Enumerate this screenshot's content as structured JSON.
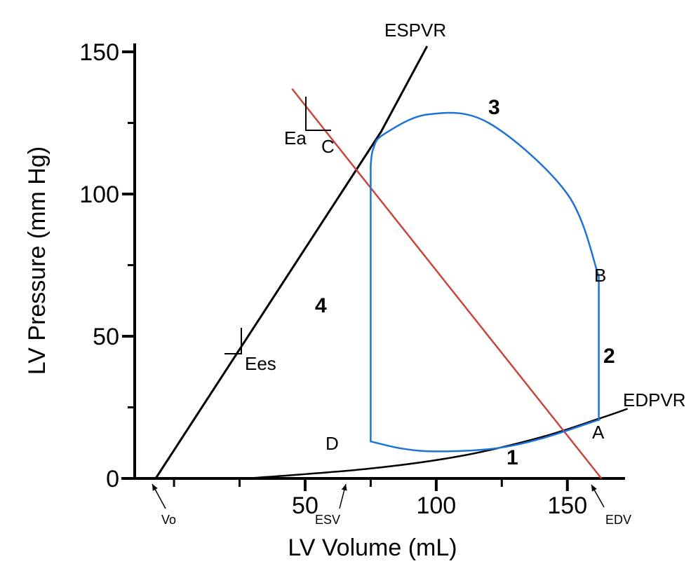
{
  "axes": {
    "xlabel": "LV Volume (mL)",
    "ylabel": "LV Pressure (mm Hg)",
    "xlim": [
      -15,
      172
    ],
    "ylim": [
      0,
      150
    ],
    "x_ticks": [
      {
        "value": 50,
        "label": "50"
      },
      {
        "value": 100,
        "label": "100"
      },
      {
        "value": 150,
        "label": "150"
      }
    ],
    "x_minor_ticks": [
      0,
      25,
      75,
      125
    ],
    "y_ticks": [
      {
        "value": 0,
        "label": "0"
      },
      {
        "value": 50,
        "label": "50"
      },
      {
        "value": 100,
        "label": "100"
      },
      {
        "value": 150,
        "label": "150"
      }
    ],
    "y_minor_ticks": [
      25,
      75,
      125
    ]
  },
  "colors": {
    "axis": "#000000",
    "espvr": "#000000",
    "edpvr": "#000000",
    "loop": "#1e73d6",
    "ea_line": "#c8453e"
  },
  "curves": {
    "espvr": {
      "label": "ESPVR",
      "points": [
        [
          -7,
          0
        ],
        [
          79,
          122
        ],
        [
          96.5,
          152
        ]
      ]
    },
    "edpvr": {
      "label": "EDPVR",
      "points": [
        [
          28,
          0
        ],
        [
          75,
          3.5
        ],
        [
          110,
          8
        ],
        [
          140,
          14.5
        ],
        [
          162,
          21
        ],
        [
          173,
          24.5
        ]
      ]
    },
    "ea": {
      "label": "Ea",
      "points": [
        [
          45,
          137
        ],
        [
          163,
          0
        ]
      ]
    }
  },
  "loop": {
    "points": [
      [
        162,
        20.5
      ],
      [
        162,
        71
      ],
      [
        150,
        100
      ],
      [
        120,
        125
      ],
      [
        97,
        128
      ],
      [
        80,
        121
      ],
      [
        76,
        116
      ],
      [
        75,
        110
      ],
      [
        75,
        13
      ],
      [
        87,
        10.5
      ],
      [
        100,
        9.5
      ],
      [
        122,
        10.5
      ],
      [
        140,
        14
      ],
      [
        160,
        20
      ],
      [
        162,
        20.5
      ]
    ]
  },
  "point_labels": [
    {
      "id": "A",
      "label": "A"
    },
    {
      "id": "B",
      "label": "B"
    },
    {
      "id": "C",
      "label": "C"
    },
    {
      "id": "D",
      "label": "D"
    }
  ],
  "phases": [
    {
      "id": "1",
      "label": "1"
    },
    {
      "id": "2",
      "label": "2"
    },
    {
      "id": "3",
      "label": "3"
    },
    {
      "id": "4",
      "label": "4"
    }
  ],
  "slopes": {
    "ees": {
      "label": "Ees"
    },
    "ea": {
      "label": "Ea"
    }
  },
  "markers": {
    "vo": {
      "label": "Vo"
    },
    "esv": {
      "label": "ESV"
    },
    "edv": {
      "label": "EDV"
    }
  }
}
